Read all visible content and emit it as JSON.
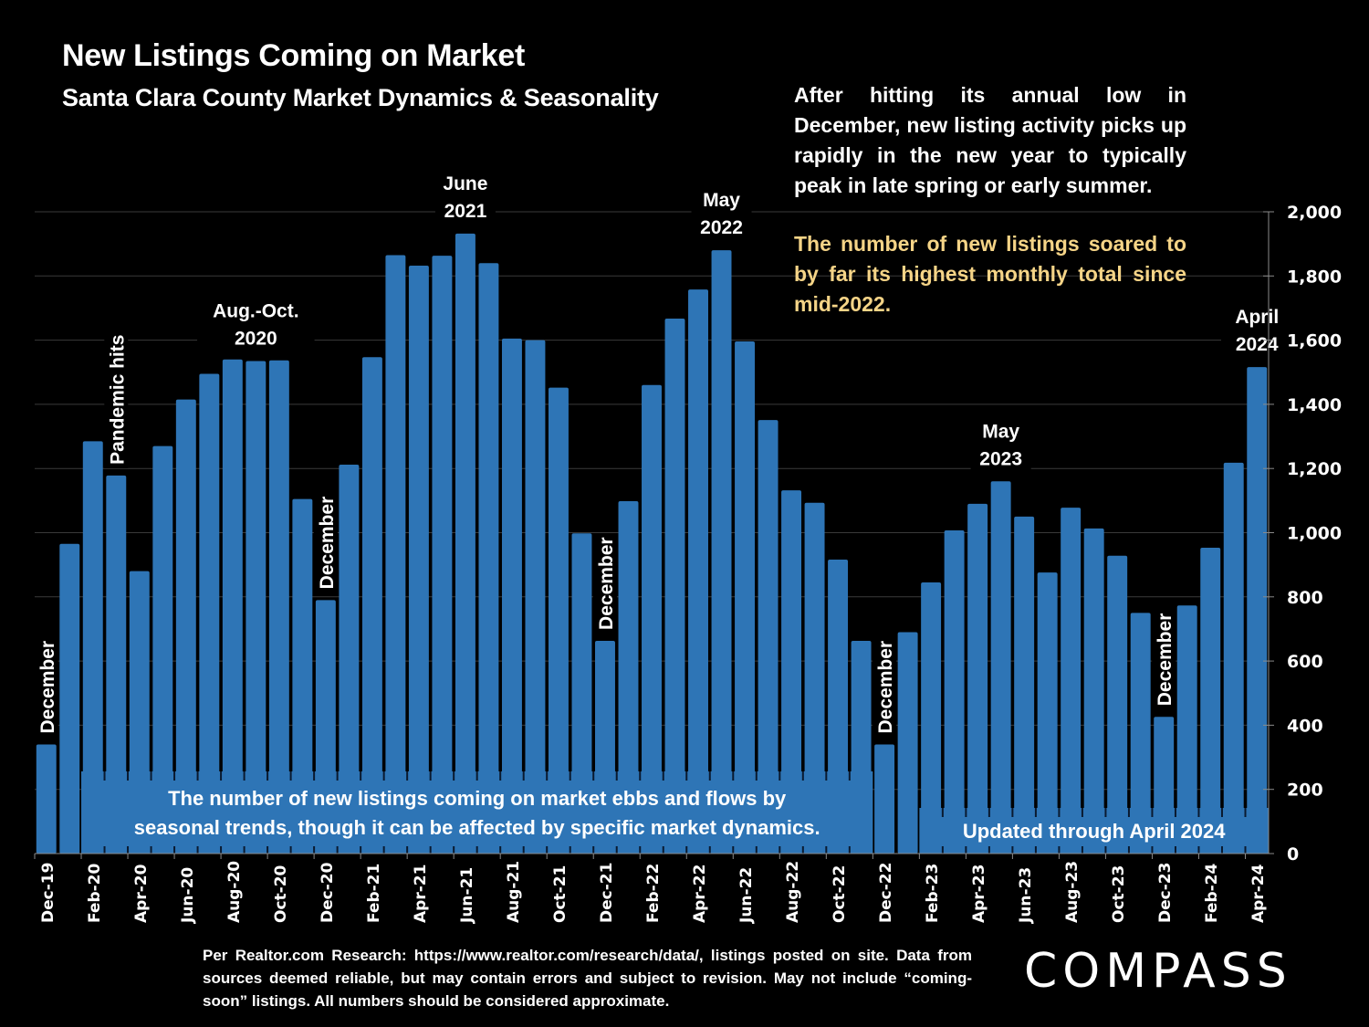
{
  "header": {
    "title": "New Listings Coming on Market",
    "subtitle": "Santa Clara County Market Dynamics & Seasonality"
  },
  "notes": {
    "seasonality": "After hitting its annual low in December, new listing activity picks up rapidly in the new year to typically peak in late spring or early summer.",
    "highlight": "The number of new listings soared to by far its highest monthly total since mid-2022."
  },
  "colors": {
    "bar": "#2e75b6",
    "background": "#000000",
    "highlight_text": "#f5d487",
    "grid": "#3a3a3a"
  },
  "chart_data": {
    "type": "bar",
    "title": "New Listings Coming on Market",
    "xlabel": "",
    "ylabel": "",
    "ylim": [
      0,
      2000
    ],
    "y_ticks": [
      0,
      200,
      400,
      600,
      800,
      1000,
      1200,
      1400,
      1600,
      1800,
      2000
    ],
    "y_tick_labels": [
      "0",
      "200",
      "400",
      "600",
      "800",
      "1,000",
      "1,200",
      "1,400",
      "1,600",
      "1,800",
      "2,000"
    ],
    "y_axis_side": "right",
    "grid": true,
    "categories": [
      "Dec-19",
      "Jan-20",
      "Feb-20",
      "Mar-20",
      "Apr-20",
      "May-20",
      "Jun-20",
      "Jul-20",
      "Aug-20",
      "Sep-20",
      "Oct-20",
      "Nov-20",
      "Dec-20",
      "Jan-21",
      "Feb-21",
      "Mar-21",
      "Apr-21",
      "May-21",
      "Jun-21",
      "Jul-21",
      "Aug-21",
      "Sep-21",
      "Oct-21",
      "Nov-21",
      "Dec-21",
      "Jan-22",
      "Feb-22",
      "Mar-22",
      "Apr-22",
      "May-22",
      "Jun-22",
      "Jul-22",
      "Aug-22",
      "Sep-22",
      "Oct-22",
      "Nov-22",
      "Dec-22",
      "Jan-23",
      "Feb-23",
      "Mar-23",
      "Apr-23",
      "May-23",
      "Jun-23",
      "Jul-23",
      "Aug-23",
      "Sep-23",
      "Oct-23",
      "Nov-23",
      "Dec-23",
      "Jan-24",
      "Feb-24",
      "Mar-24",
      "Apr-24"
    ],
    "x_tick_labels_every": 2,
    "values": [
      340,
      965,
      1285,
      1178,
      880,
      1270,
      1415,
      1495,
      1540,
      1535,
      1537,
      1105,
      790,
      1212,
      1547,
      1865,
      1832,
      1863,
      1932,
      1840,
      1605,
      1600,
      1452,
      998,
      663,
      1098,
      1460,
      1667,
      1758,
      1880,
      1596,
      1351,
      1132,
      1093,
      916,
      663,
      340,
      690,
      845,
      1007,
      1090,
      1160,
      1050,
      876,
      1078,
      1013,
      928,
      750,
      426,
      773,
      953,
      1218,
      1516
    ],
    "series": [
      {
        "name": "New Listings",
        "color": "#2e75b6"
      }
    ],
    "annotations": [
      {
        "text": "December",
        "at": "Dec-19",
        "rotated": true
      },
      {
        "text": "Pandemic hits",
        "at": "Mar-20",
        "rotated": true
      },
      {
        "text": "Aug.-Oct.\n2020",
        "at": "Sep-20",
        "rotated": false
      },
      {
        "text": "December",
        "at": "Dec-20",
        "rotated": true
      },
      {
        "text": "June\n2021",
        "at": "Jun-21",
        "rotated": false
      },
      {
        "text": "December",
        "at": "Dec-21",
        "rotated": true
      },
      {
        "text": "May\n2022",
        "at": "May-22",
        "rotated": false
      },
      {
        "text": "December",
        "at": "Dec-22",
        "rotated": true
      },
      {
        "text": "May\n2023",
        "at": "May-23",
        "rotated": false
      },
      {
        "text": "December",
        "at": "Dec-23",
        "rotated": true
      },
      {
        "text": "April\n2024",
        "at": "Apr-24",
        "rotated": false
      }
    ],
    "boxes": [
      {
        "text": "The number of new listings coming on market ebbs and flows by\nseasonal trends, though it can be affected by specific market dynamics.",
        "from": "Feb-20",
        "to": "Nov-22"
      },
      {
        "text": "Updated through April 2024",
        "from": "Feb-23",
        "to": "Apr-24"
      }
    ]
  },
  "footer": {
    "source": "Per Realtor.com Research:  https://www.realtor.com/research/data/, listings posted on site. Data from sources deemed reliable, but may contain errors and subject to revision. May not include “coming-soon” listings. All numbers should be considered approximate.",
    "logo": "COMPASS"
  }
}
